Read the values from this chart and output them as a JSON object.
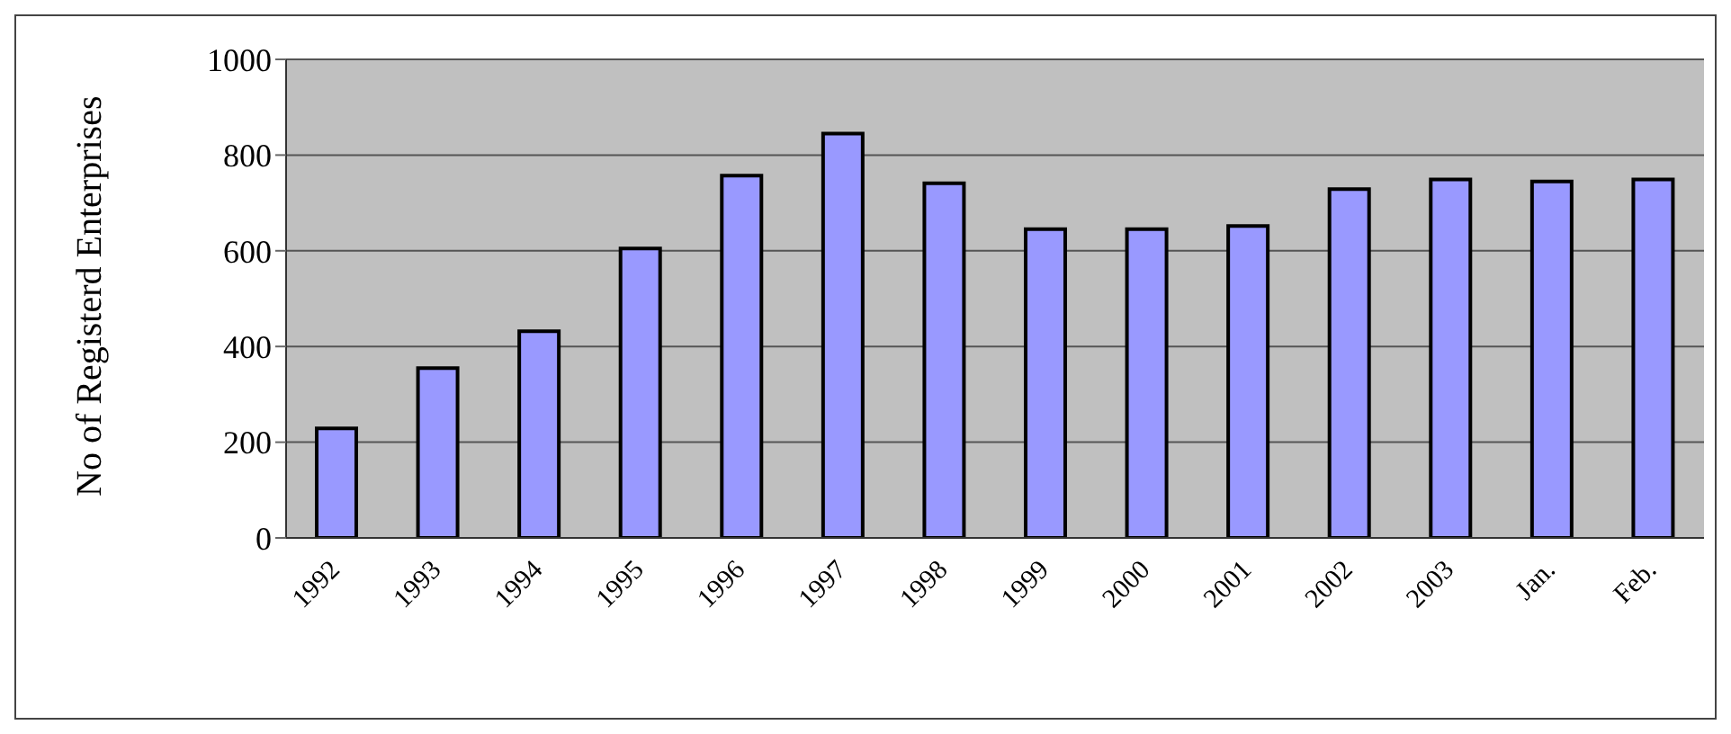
{
  "chart_data": {
    "type": "bar",
    "ylabel": "No of Registerd Enterprises",
    "categories": [
      "1992",
      "1993",
      "1994",
      "1995",
      "1996",
      "1997",
      "1998",
      "1999",
      "2000",
      "2001",
      "2002",
      "2003",
      "Jan.",
      "Feb."
    ],
    "values": [
      229,
      355,
      432,
      605,
      757,
      845,
      741,
      645,
      645,
      652,
      729,
      749,
      745,
      749
    ],
    "color": "#9999ff",
    "ylim": [
      0,
      1000
    ],
    "yticks": [
      0,
      200,
      400,
      600,
      800,
      1000
    ],
    "grid": "y",
    "legend": false
  }
}
